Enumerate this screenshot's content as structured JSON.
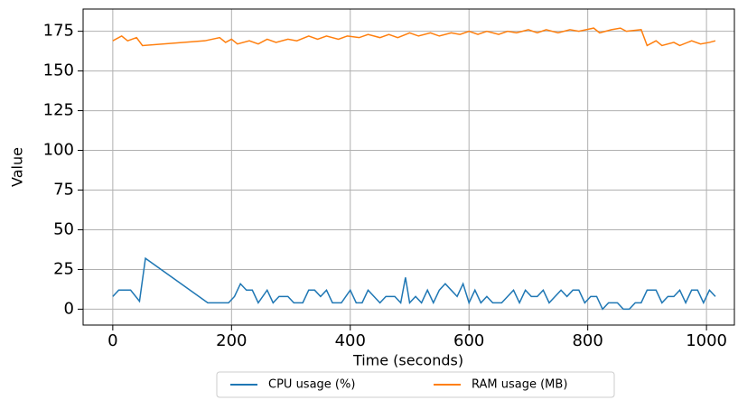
{
  "chart_data": {
    "type": "line",
    "xlabel": "Time (seconds)",
    "ylabel": "Value",
    "xlim": [
      -50,
      1047
    ],
    "ylim": [
      -10,
      189
    ],
    "xticks": [
      0,
      200,
      400,
      600,
      800,
      1000
    ],
    "yticks": [
      0,
      25,
      50,
      75,
      100,
      125,
      150,
      175
    ],
    "grid": true,
    "legend": "below",
    "series": [
      {
        "name": "CPU usage (%)",
        "color": "#1f77b4",
        "x": [
          0,
          10,
          20,
          30,
          45,
          55,
          160,
          195,
          205,
          215,
          225,
          235,
          245,
          260,
          270,
          280,
          295,
          305,
          320,
          330,
          340,
          350,
          360,
          370,
          385,
          400,
          410,
          420,
          430,
          440,
          450,
          460,
          475,
          485,
          493,
          500,
          510,
          520,
          530,
          540,
          550,
          560,
          570,
          580,
          590,
          600,
          610,
          620,
          630,
          640,
          655,
          665,
          675,
          685,
          695,
          705,
          715,
          725,
          735,
          745,
          755,
          765,
          775,
          785,
          795,
          805,
          815,
          825,
          835,
          850,
          860,
          870,
          880,
          890,
          900,
          915,
          925,
          935,
          945,
          955,
          965,
          975,
          985,
          995,
          1005,
          1015
        ],
        "values": [
          8,
          12,
          12,
          12,
          5,
          32,
          4,
          4,
          8,
          16,
          12,
          12,
          4,
          12,
          4,
          8,
          8,
          4,
          4,
          12,
          12,
          8,
          12,
          4,
          4,
          12,
          4,
          4,
          12,
          8,
          4,
          8,
          8,
          4,
          20,
          4,
          8,
          4,
          12,
          4,
          12,
          16,
          12,
          8,
          16,
          4,
          12,
          4,
          8,
          4,
          4,
          8,
          12,
          4,
          12,
          8,
          8,
          12,
          4,
          8,
          12,
          8,
          12,
          12,
          4,
          8,
          8,
          0,
          4,
          4,
          0,
          0,
          4,
          4,
          12,
          12,
          4,
          8,
          8,
          12,
          4,
          12,
          12,
          4,
          12,
          8
        ]
      },
      {
        "name": "RAM usage (MB)",
        "color": "#ff7f0e",
        "x": [
          0,
          15,
          25,
          40,
          50,
          155,
          180,
          190,
          200,
          210,
          230,
          245,
          260,
          275,
          295,
          310,
          330,
          345,
          360,
          380,
          395,
          415,
          430,
          450,
          465,
          480,
          500,
          515,
          535,
          550,
          570,
          585,
          600,
          615,
          630,
          650,
          665,
          680,
          700,
          715,
          730,
          750,
          770,
          785,
          810,
          820,
          840,
          855,
          865,
          890,
          900,
          915,
          925,
          945,
          955,
          975,
          990,
          1005,
          1015
        ],
        "values": [
          169,
          172,
          169,
          171,
          166,
          169,
          171,
          168,
          170,
          167,
          169,
          167,
          170,
          168,
          170,
          169,
          172,
          170,
          172,
          170,
          172,
          171,
          173,
          171,
          173,
          171,
          174,
          172,
          174,
          172,
          174,
          173,
          175,
          173,
          175,
          173,
          175,
          174,
          176,
          174,
          176,
          174,
          176,
          175,
          177,
          174,
          176,
          177,
          175,
          176,
          166,
          169,
          166,
          168,
          166,
          169,
          167,
          168,
          169
        ]
      }
    ]
  }
}
